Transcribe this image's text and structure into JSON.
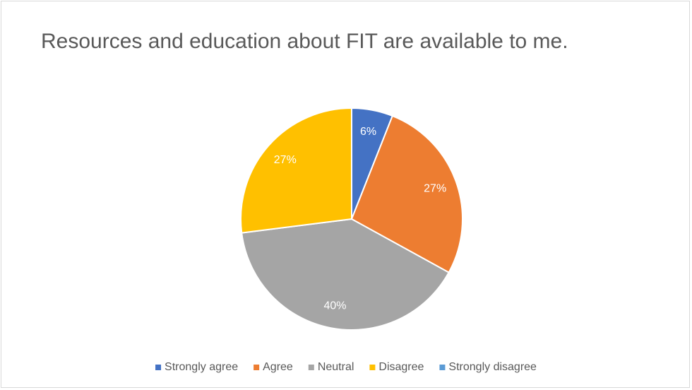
{
  "chart_data": {
    "type": "pie",
    "title": "Resources and education about FIT are available to me.",
    "categories": [
      "Strongly agree",
      "Agree",
      "Neutral",
      "Disagree",
      "Strongly disagree"
    ],
    "values": [
      6,
      27,
      40,
      27,
      0
    ],
    "value_labels": [
      "6%",
      "27%",
      "40%",
      "27%",
      null
    ],
    "colors": [
      "#4472c4",
      "#ed7d31",
      "#a5a5a5",
      "#ffc000",
      "#5b9bd5"
    ],
    "legend": "bottom"
  }
}
